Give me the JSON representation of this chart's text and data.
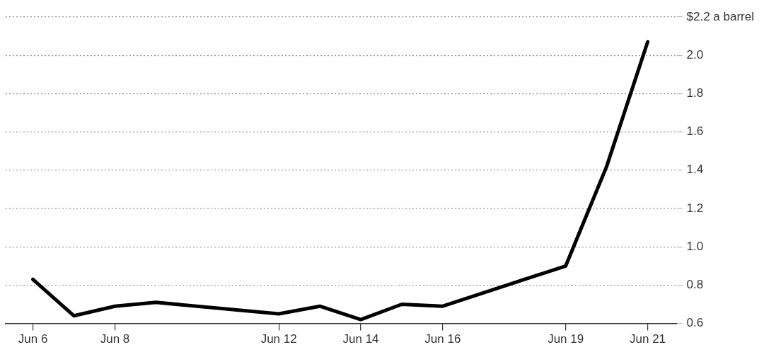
{
  "chart_data": {
    "type": "line",
    "x": [
      "--06-06",
      "--06-07",
      "--06-08",
      "--06-09",
      "--06-12",
      "--06-13",
      "--06-14",
      "--06-15",
      "--06-16",
      "--06-19",
      "--06-20",
      "--06-21"
    ],
    "series": [
      {
        "color": "#000000",
        "values": [
          0.83,
          0.64,
          0.69,
          0.71,
          0.65,
          0.69,
          0.62,
          0.7,
          0.69,
          0.9,
          1.42,
          2.07
        ]
      }
    ],
    "xlim": [
      "--06-05T08:00",
      "--06-21T17:00"
    ],
    "xticks": [
      {
        "value": "--06-06",
        "label": "Jun 6"
      },
      {
        "value": "--06-08",
        "label": "Jun 8"
      },
      {
        "value": "--06-12",
        "label": "Jun 12"
      },
      {
        "value": "--06-14",
        "label": "Jun 14"
      },
      {
        "value": "--06-16",
        "label": "Jun 16"
      },
      {
        "value": "--06-19",
        "label": "Jun 19"
      },
      {
        "value": "--06-21",
        "label": "Jun 21"
      }
    ],
    "ylim": [
      0.6,
      2.2
    ],
    "yticks": [
      0.6,
      0.8,
      {
        "value": 1.0,
        "label": "1.0"
      },
      1.2,
      1.4,
      1.6,
      1.8,
      {
        "value": 2.0,
        "label": "2.0"
      },
      {
        "value": 2.2,
        "label": "$2.2 a barrel"
      }
    ],
    "grid": "y",
    "legend": false,
    "marker": "none",
    "line_style": "solid"
  }
}
